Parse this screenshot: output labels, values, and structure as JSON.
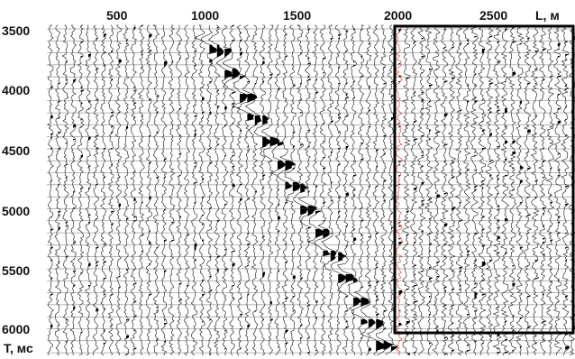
{
  "figure": {
    "x_axis_label": "L, м",
    "y_axis_label": "T, мс",
    "x_ticks": [
      "500",
      "1000",
      "1500",
      "2000",
      "2500"
    ],
    "y_ticks": [
      "3500",
      "4000",
      "4500",
      "5000",
      "5500",
      "6000"
    ],
    "highlight_box": {
      "x_from": 2000,
      "x_to": "right edge",
      "t_from": 3500,
      "t_to": 6000
    },
    "colors": {
      "trace": "#111111",
      "fill": "#000000",
      "highlight_trace": "#e0301e",
      "box": "#000000"
    }
  }
}
